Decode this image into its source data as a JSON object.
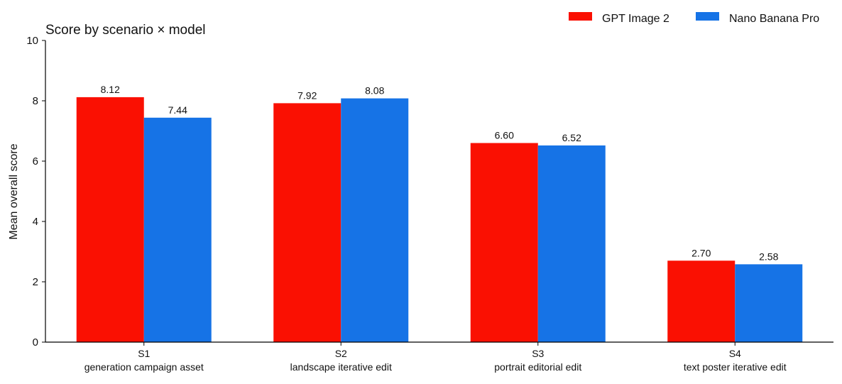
{
  "chart_data": {
    "type": "bar",
    "title": "Score by scenario × model",
    "ylabel": "Mean overall score",
    "xlabel": "",
    "ylim": [
      0,
      10
    ],
    "yticks": [
      0,
      2,
      4,
      6,
      8,
      10
    ],
    "grid": false,
    "legend_position": "top-right",
    "categories": [
      "S1",
      "S2",
      "S3",
      "S4"
    ],
    "category_sublabels": [
      "generation campaign asset",
      "landscape iterative edit",
      "portrait editorial edit",
      "text poster iterative edit"
    ],
    "series": [
      {
        "name": "GPT Image 2",
        "color": "#fa1002",
        "values": [
          8.12,
          7.92,
          6.6,
          2.7
        ],
        "value_labels": [
          "8.12",
          "7.92",
          "6.60",
          "2.70"
        ]
      },
      {
        "name": "Nano Banana Pro",
        "color": "#1673e6",
        "values": [
          7.44,
          8.08,
          6.52,
          2.58
        ],
        "value_labels": [
          "7.44",
          "8.08",
          "6.52",
          "2.58"
        ]
      }
    ]
  }
}
